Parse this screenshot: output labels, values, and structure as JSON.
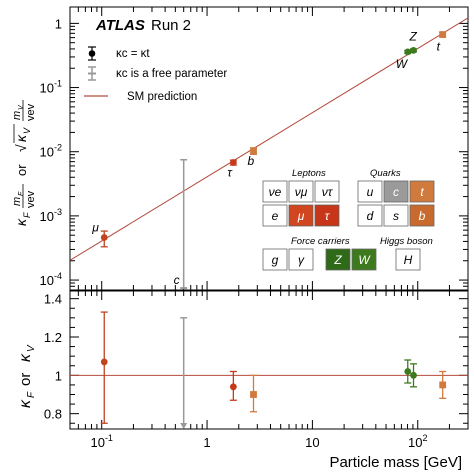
{
  "chart_data": [
    {
      "type": "scatter",
      "panel": "top",
      "experiment": "ATLAS",
      "experiment_suffix": "Run 2",
      "ylabel_main": "κ_F m_F/vev or √κ_V m_V/vev",
      "xscale": "log",
      "yscale": "log",
      "xlim": [
        0.05,
        300
      ],
      "ylim": [
        7e-05,
        1.8
      ],
      "x_tick_labels": [
        "10^-1",
        "1",
        "10",
        "10^2"
      ],
      "y_ticks": [
        0.0001,
        0.001,
        0.01,
        0.1,
        1
      ],
      "y_tick_labels": [
        "10^-4",
        "10^-3",
        "10^-2",
        "10^-1",
        "1"
      ],
      "sm_line": {
        "label": "SM prediction",
        "color": "#b44a3c"
      },
      "points": [
        {
          "label": "μ",
          "x": 0.1057,
          "y": 0.00046,
          "err_low": 0.00013,
          "err_high": 0.00012,
          "color": "#c0441e"
        },
        {
          "label": "τ",
          "x": 1.777,
          "y": 0.0068,
          "err_low": 0.0006,
          "err_high": 0.0006,
          "color": "#c63a1b"
        },
        {
          "label": "b",
          "x": 2.76,
          "y": 0.0103,
          "err_low": 0.0012,
          "err_high": 0.0012,
          "color": "#d07a3e"
        },
        {
          "label": "W",
          "x": 80.4,
          "y": 0.36,
          "err_low": 0.02,
          "err_high": 0.02,
          "color": "#3d7a1e"
        },
        {
          "label": "Z",
          "x": 91.2,
          "y": 0.38,
          "err_low": 0.02,
          "err_high": 0.02,
          "color": "#3d7a1e"
        },
        {
          "label": "t",
          "x": 172.5,
          "y": 0.67,
          "err_low": 0.05,
          "err_high": 0.05,
          "color": "#d07a3e"
        }
      ],
      "limit_point": {
        "label": "c",
        "x": 0.6,
        "y": 7.5e-05,
        "upper": 0.0075,
        "color": "#999999"
      },
      "legend": [
        {
          "text": "κc = κt",
          "marker": "filled-dot-errorbar",
          "color": "#000000"
        },
        {
          "text": "κc is a free parameter",
          "marker": "errorbar",
          "color": "#999999"
        },
        {
          "text": "SM prediction",
          "marker": "line",
          "color": "#b44a3c"
        }
      ],
      "particle_table": {
        "leptons_label": "Leptons",
        "quarks_label": "Quarks",
        "force_label": "Force carriers",
        "higgs_label": "Higgs boson",
        "leptons": [
          {
            "text": "νe",
            "fill": "#ffffff",
            "text_color": "#000000"
          },
          {
            "text": "νμ",
            "fill": "#ffffff",
            "text_color": "#000000"
          },
          {
            "text": "ντ",
            "fill": "#ffffff",
            "text_color": "#000000"
          },
          {
            "text": "e",
            "fill": "#ffffff",
            "text_color": "#000000"
          },
          {
            "text": "μ",
            "fill": "#d2461f",
            "text_color": "#ffffff"
          },
          {
            "text": "τ",
            "fill": "#c8361a",
            "text_color": "#ffffff"
          }
        ],
        "quarks": [
          {
            "text": "u",
            "fill": "#ffffff",
            "text_color": "#000000"
          },
          {
            "text": "c",
            "fill": "#9a9a9a",
            "text_color": "#ffffff"
          },
          {
            "text": "t",
            "fill": "#d17a3d",
            "text_color": "#ffffff"
          },
          {
            "text": "d",
            "fill": "#ffffff",
            "text_color": "#000000"
          },
          {
            "text": "s",
            "fill": "#ffffff",
            "text_color": "#000000"
          },
          {
            "text": "b",
            "fill": "#c8692e",
            "text_color": "#ffffff"
          }
        ],
        "force": [
          {
            "text": "g",
            "fill": "#ffffff",
            "text_color": "#000000"
          },
          {
            "text": "γ",
            "fill": "#ffffff",
            "text_color": "#000000"
          },
          {
            "text": "Z",
            "fill": "#2e6a18",
            "text_color": "#ffffff"
          },
          {
            "text": "W",
            "fill": "#3d7a1e",
            "text_color": "#ffffff"
          }
        ],
        "higgs": [
          {
            "text": "H",
            "fill": "#ffffff",
            "text_color": "#000000"
          }
        ]
      }
    },
    {
      "type": "scatter",
      "panel": "bottom",
      "ylabel": "κF or κV",
      "xlabel": "Particle mass [GeV]",
      "xscale": "log",
      "xlim": [
        0.05,
        300
      ],
      "ylim": [
        0.72,
        1.44
      ],
      "y_ticks": [
        0.8,
        1.0,
        1.2,
        1.4
      ],
      "y_tick_labels": [
        "0.8",
        "1",
        "1.2",
        "1.4"
      ],
      "sm_line": {
        "y": 1.0,
        "color": "#b44a3c"
      },
      "points": [
        {
          "label": "μ",
          "x": 0.1057,
          "y": 1.07,
          "err_low": 0.32,
          "err_high": 0.26,
          "color": "#c0441e"
        },
        {
          "label": "τ",
          "x": 1.777,
          "y": 0.94,
          "err_low": 0.07,
          "err_high": 0.08,
          "color": "#c63a1b"
        },
        {
          "label": "b",
          "x": 2.76,
          "y": 0.9,
          "err_low": 0.09,
          "err_high": 0.1,
          "color": "#d07a3e"
        },
        {
          "label": "W",
          "x": 80.4,
          "y": 1.02,
          "err_low": 0.06,
          "err_high": 0.06,
          "color": "#3d7a1e"
        },
        {
          "label": "Z",
          "x": 91.2,
          "y": 1.0,
          "err_low": 0.06,
          "err_high": 0.06,
          "color": "#3d7a1e"
        },
        {
          "label": "t",
          "x": 172.5,
          "y": 0.95,
          "err_low": 0.07,
          "err_high": 0.07,
          "color": "#d07a3e"
        }
      ],
      "limit_point": {
        "label": "c",
        "x": 0.6,
        "lower_arrow_y": 0.72,
        "upper": 1.3,
        "color": "#999999"
      }
    }
  ]
}
